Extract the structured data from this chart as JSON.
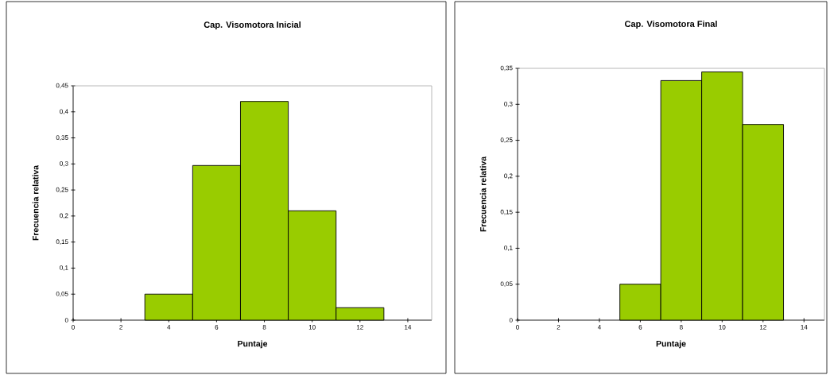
{
  "chart_data": [
    {
      "type": "histogram",
      "title": "Cap. Visomotora Inicial",
      "xlabel": "Puntaje",
      "ylabel": "Frecuencia relativa",
      "color": "#99cc00",
      "bins": [
        3,
        5,
        7,
        9,
        11,
        13
      ],
      "values": [
        0.05,
        0.297,
        0.42,
        0.21,
        0.024
      ],
      "xlim": [
        0,
        15
      ],
      "xticks": [
        0,
        2,
        4,
        6,
        8,
        10,
        12,
        14
      ],
      "ylim": [
        0,
        0.45
      ],
      "yticks": [
        {
          "value": 0,
          "label": "0"
        },
        {
          "value": 0.05,
          "label": "0,05"
        },
        {
          "value": 0.1,
          "label": "0,1"
        },
        {
          "value": 0.15,
          "label": "0,15"
        },
        {
          "value": 0.2,
          "label": "0,2"
        },
        {
          "value": 0.25,
          "label": "0,25"
        },
        {
          "value": 0.3,
          "label": "0,3"
        },
        {
          "value": 0.35,
          "label": "0,35"
        },
        {
          "value": 0.4,
          "label": "0,4"
        },
        {
          "value": 0.45,
          "label": "0,45"
        }
      ]
    },
    {
      "type": "histogram",
      "title": "Cap. Visomotora Final",
      "xlabel": "Puntaje",
      "ylabel": "Frecuencia relativa",
      "color": "#99cc00",
      "bins": [
        5,
        7,
        9,
        11,
        13
      ],
      "values": [
        0.05,
        0.333,
        0.345,
        0.272
      ],
      "xlim": [
        0,
        15
      ],
      "xticks": [
        0,
        2,
        4,
        6,
        8,
        10,
        12,
        14
      ],
      "ylim": [
        0,
        0.35
      ],
      "yticks": [
        {
          "value": 0,
          "label": "0"
        },
        {
          "value": 0.05,
          "label": "0,05"
        },
        {
          "value": 0.1,
          "label": "0,1"
        },
        {
          "value": 0.15,
          "label": "0,15"
        },
        {
          "value": 0.2,
          "label": "0,2"
        },
        {
          "value": 0.25,
          "label": "0,25"
        },
        {
          "value": 0.3,
          "label": "0,3"
        },
        {
          "value": 0.35,
          "label": "0,35"
        }
      ]
    }
  ]
}
